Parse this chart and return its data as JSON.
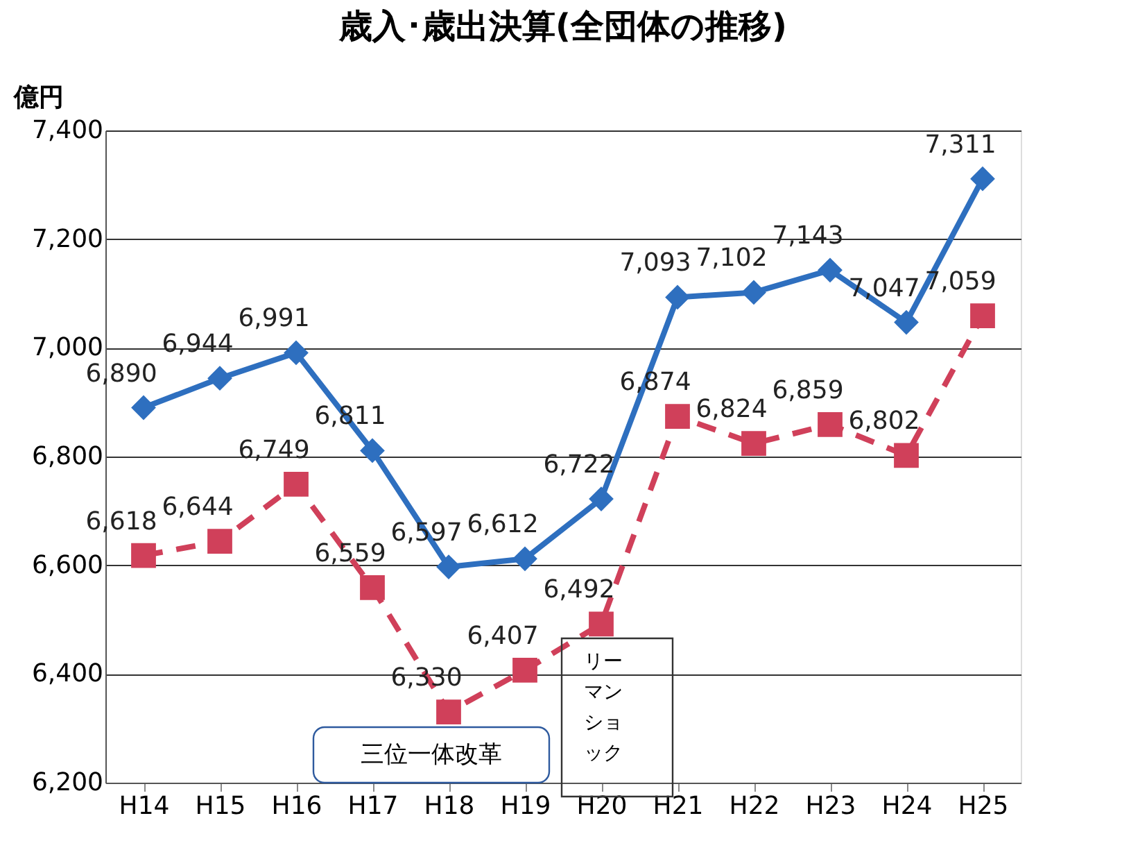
{
  "chart_data": {
    "type": "line",
    "title": "歳入･歳出決算(全団体の推移)",
    "ylabel": "億円",
    "categories": [
      "H14",
      "H15",
      "H16",
      "H17",
      "H18",
      "H19",
      "H20",
      "H21",
      "H22",
      "H23",
      "H24",
      "H25"
    ],
    "series": [
      {
        "color": "#2e6fbf",
        "marker": "diamond",
        "line_style": "solid",
        "values": [
          6890,
          6944,
          6991,
          6811,
          6597,
          6612,
          6722,
          7093,
          7102,
          7143,
          7047,
          7311
        ],
        "value_labels": [
          "6,890",
          "6,944",
          "6,991",
          "6,811",
          "6,597",
          "6,612",
          "6,722",
          "7,093",
          "7,102",
          "7,143",
          "7,047",
          "7,311"
        ]
      },
      {
        "color": "#d0405a",
        "marker": "square",
        "line_style": "dashed",
        "values": [
          6618,
          6644,
          6749,
          6559,
          6330,
          6407,
          6492,
          6874,
          6824,
          6859,
          6802,
          7059
        ],
        "value_labels": [
          "6,618",
          "6,644",
          "6,749",
          "6,559",
          "6,330",
          "6,407",
          "6,492",
          "6,874",
          "6,824",
          "6,859",
          "6,802",
          "7,059"
        ]
      }
    ],
    "ylim": [
      6200,
      7400
    ],
    "yticks": [
      {
        "value": 6200,
        "label": "6,200"
      },
      {
        "value": 6400,
        "label": "6,400"
      },
      {
        "value": 6600,
        "label": "6,600"
      },
      {
        "value": 6800,
        "label": "6,800"
      },
      {
        "value": 7000,
        "label": "7,000"
      },
      {
        "value": 7200,
        "label": "7,200"
      },
      {
        "value": 7400,
        "label": "7,400"
      }
    ],
    "grid": "y",
    "annotations": [
      "三位一体改革",
      "リーマンショック"
    ]
  }
}
